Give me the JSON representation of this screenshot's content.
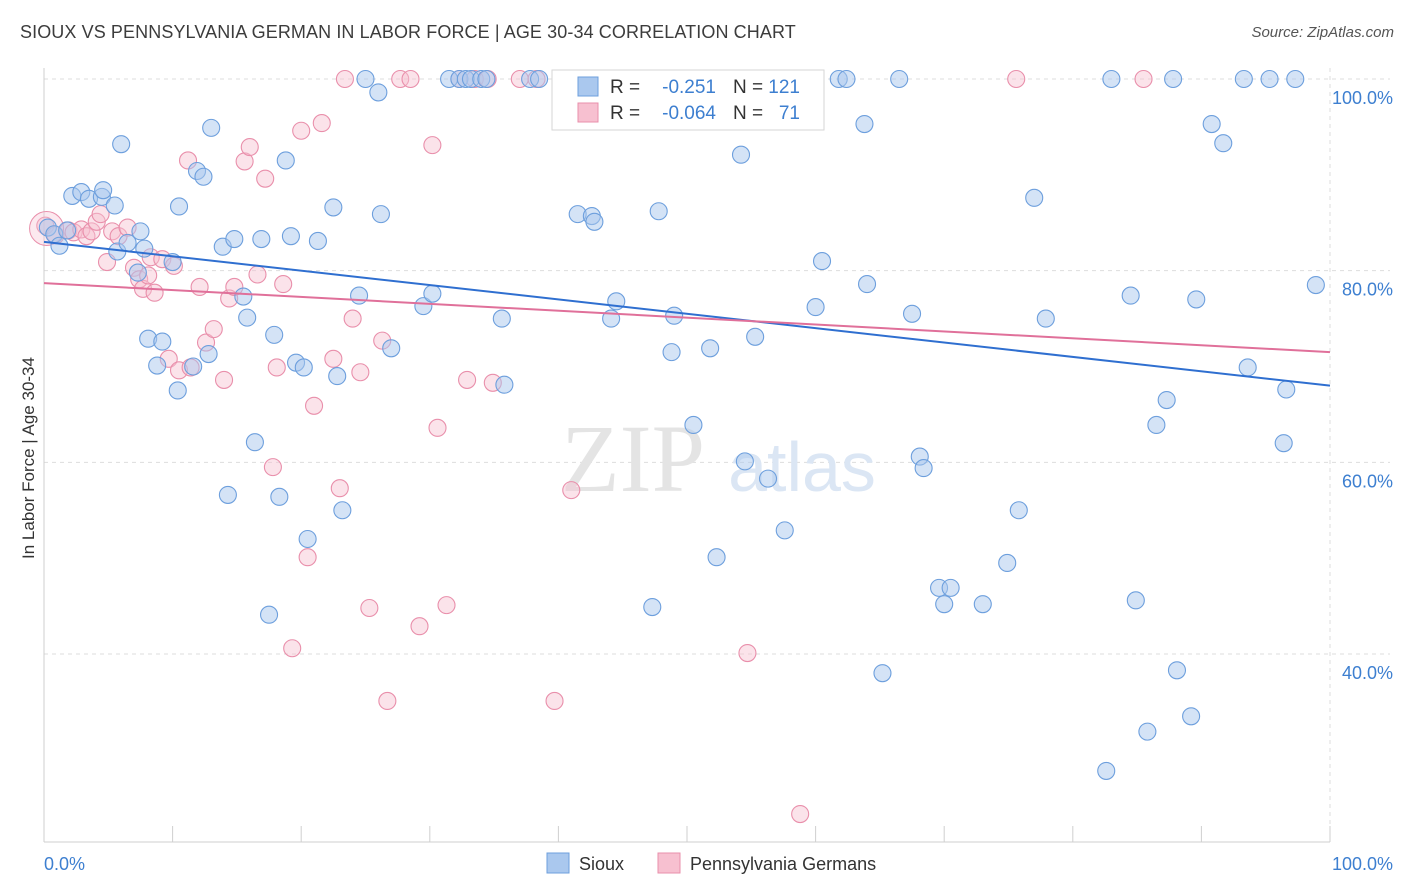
{
  "header": {
    "title": "SIOUX VS PENNSYLVANIA GERMAN IN LABOR FORCE | AGE 30-34 CORRELATION CHART",
    "source": "Source: ZipAtlas.com"
  },
  "watermark": {
    "zip": "ZIP",
    "atlas": "atlas"
  },
  "colors": {
    "sioux_fill": "#aac8ee",
    "sioux_stroke": "#6d9fdd",
    "sioux_line": "#2f6fd0",
    "pa_fill": "#f7c0d0",
    "pa_stroke": "#e98fab",
    "pa_line": "#e0709a",
    "tick_label": "#3d7fd0",
    "grid": "#dddddd"
  },
  "legend": {
    "r_label": "R =",
    "n_label": "N =",
    "rows": [
      {
        "r": "-0.251",
        "n": "121"
      },
      {
        "r": "-0.064",
        "n": "71"
      }
    ]
  },
  "chart_data": {
    "type": "scatter",
    "title": "SIOUX VS PENNSYLVANIA GERMAN IN LABOR FORCE | AGE 30-34 CORRELATION CHART",
    "xlabel": "",
    "ylabel": "In Labor Force | Age 30-34",
    "xlim": [
      0,
      100
    ],
    "ylim": [
      20,
      103
    ],
    "x_tick_labels": [
      "0.0%",
      "100.0%"
    ],
    "y_ticks": [
      40,
      60,
      80,
      100
    ],
    "y_tick_labels": [
      "40.0%",
      "60.0%",
      "80.0%",
      "100.0%"
    ],
    "grid": true,
    "legend_position": "top-center",
    "series": [
      {
        "name": "Sioux",
        "r": -0.251,
        "n": 121,
        "trend": {
          "x": [
            0,
            100
          ],
          "y": [
            83.0,
            68.0
          ]
        },
        "points": [
          [
            0.3,
            84.5
          ],
          [
            0.8,
            83.8
          ],
          [
            1.2,
            82.6
          ],
          [
            1.8,
            84.2
          ],
          [
            2.2,
            87.8
          ],
          [
            2.9,
            88.2
          ],
          [
            3.5,
            87.5
          ],
          [
            4.5,
            87.7
          ],
          [
            4.6,
            88.4
          ],
          [
            5.5,
            86.8
          ],
          [
            5.7,
            82.0
          ],
          [
            6.0,
            93.2
          ],
          [
            6.5,
            82.9
          ],
          [
            7.3,
            79.8
          ],
          [
            7.5,
            84.1
          ],
          [
            7.8,
            82.3
          ],
          [
            8.1,
            72.9
          ],
          [
            8.8,
            70.1
          ],
          [
            9.2,
            72.6
          ],
          [
            10.0,
            80.9
          ],
          [
            10.4,
            67.5
          ],
          [
            10.5,
            86.7
          ],
          [
            11.6,
            70.0
          ],
          [
            11.9,
            90.4
          ],
          [
            12.4,
            89.8
          ],
          [
            12.8,
            71.3
          ],
          [
            13.0,
            94.9
          ],
          [
            13.9,
            82.5
          ],
          [
            14.3,
            56.6
          ],
          [
            14.8,
            83.3
          ],
          [
            15.5,
            77.3
          ],
          [
            15.8,
            75.1
          ],
          [
            16.4,
            62.1
          ],
          [
            16.9,
            83.3
          ],
          [
            17.5,
            44.1
          ],
          [
            17.9,
            73.3
          ],
          [
            18.3,
            56.4
          ],
          [
            18.8,
            91.5
          ],
          [
            19.2,
            83.6
          ],
          [
            19.6,
            70.4
          ],
          [
            20.2,
            69.9
          ],
          [
            20.5,
            52.0
          ],
          [
            21.3,
            83.1
          ],
          [
            22.5,
            86.6
          ],
          [
            22.8,
            69.0
          ],
          [
            23.2,
            55.0
          ],
          [
            24.5,
            77.4
          ],
          [
            25.0,
            100.0
          ],
          [
            26.0,
            98.6
          ],
          [
            26.2,
            85.9
          ],
          [
            27.0,
            71.9
          ],
          [
            29.5,
            76.3
          ],
          [
            30.2,
            77.6
          ],
          [
            31.5,
            100.0
          ],
          [
            32.3,
            100.0
          ],
          [
            32.8,
            100.0
          ],
          [
            33.2,
            100.0
          ],
          [
            34.0,
            100.0
          ],
          [
            34.4,
            100.0
          ],
          [
            35.6,
            75.0
          ],
          [
            35.8,
            68.1
          ],
          [
            37.8,
            100.0
          ],
          [
            38.5,
            100.0
          ],
          [
            41.5,
            85.9
          ],
          [
            42.6,
            85.7
          ],
          [
            42.8,
            85.1
          ],
          [
            44.1,
            75.0
          ],
          [
            44.5,
            76.8
          ],
          [
            47.3,
            44.9
          ],
          [
            47.8,
            86.2
          ],
          [
            48.8,
            71.5
          ],
          [
            49.0,
            75.3
          ],
          [
            50.5,
            63.9
          ],
          [
            51.8,
            71.9
          ],
          [
            52.3,
            50.1
          ],
          [
            54.2,
            92.1
          ],
          [
            54.5,
            60.1
          ],
          [
            55.3,
            73.1
          ],
          [
            56.3,
            58.3
          ],
          [
            57.6,
            52.9
          ],
          [
            59.8,
            100.0
          ],
          [
            60.0,
            76.2
          ],
          [
            60.5,
            81.0
          ],
          [
            61.8,
            100.0
          ],
          [
            63.8,
            95.3
          ],
          [
            64.0,
            78.6
          ],
          [
            65.2,
            38.0
          ],
          [
            66.5,
            100.0
          ],
          [
            67.5,
            75.5
          ],
          [
            68.1,
            60.6
          ],
          [
            68.4,
            59.4
          ],
          [
            69.6,
            46.9
          ],
          [
            70.0,
            45.2
          ],
          [
            70.5,
            46.9
          ],
          [
            73.0,
            45.2
          ],
          [
            74.9,
            49.5
          ],
          [
            75.8,
            55.0
          ],
          [
            77.0,
            87.6
          ],
          [
            77.9,
            75.0
          ],
          [
            82.6,
            27.8
          ],
          [
            83.0,
            100.0
          ],
          [
            84.5,
            77.4
          ],
          [
            84.9,
            45.6
          ],
          [
            85.8,
            31.9
          ],
          [
            86.5,
            63.9
          ],
          [
            87.3,
            66.5
          ],
          [
            87.8,
            100.0
          ],
          [
            88.1,
            38.3
          ],
          [
            89.2,
            33.5
          ],
          [
            89.6,
            77.0
          ],
          [
            90.8,
            95.3
          ],
          [
            91.7,
            93.3
          ],
          [
            93.3,
            100.0
          ],
          [
            93.6,
            69.9
          ],
          [
            95.3,
            100.0
          ],
          [
            96.4,
            62.0
          ],
          [
            96.6,
            67.6
          ],
          [
            97.3,
            100.0
          ],
          [
            98.9,
            78.5
          ],
          [
            59.2,
            100.0
          ],
          [
            62.4,
            100.0
          ]
        ]
      },
      {
        "name": "Pennsylvania Germans",
        "r": -0.064,
        "n": 71,
        "trend": {
          "x": [
            0,
            100
          ],
          "y": [
            78.7,
            71.5
          ]
        },
        "points": [
          [
            0.1,
            84.7
          ],
          [
            0.9,
            83.7
          ],
          [
            1.9,
            84.2
          ],
          [
            2.3,
            84.0
          ],
          [
            2.9,
            84.3
          ],
          [
            3.3,
            83.6
          ],
          [
            3.7,
            84.1
          ],
          [
            4.1,
            85.1
          ],
          [
            4.4,
            85.9
          ],
          [
            4.9,
            80.9
          ],
          [
            5.3,
            84.1
          ],
          [
            5.8,
            83.6
          ],
          [
            6.5,
            84.5
          ],
          [
            7.0,
            80.3
          ],
          [
            7.4,
            79.1
          ],
          [
            7.7,
            78.1
          ],
          [
            8.1,
            79.5
          ],
          [
            8.3,
            81.4
          ],
          [
            8.6,
            77.7
          ],
          [
            9.2,
            81.2
          ],
          [
            9.7,
            70.8
          ],
          [
            10.1,
            80.5
          ],
          [
            10.5,
            69.6
          ],
          [
            11.2,
            91.5
          ],
          [
            11.4,
            69.9
          ],
          [
            12.1,
            78.3
          ],
          [
            12.6,
            72.5
          ],
          [
            13.2,
            73.9
          ],
          [
            14.0,
            68.6
          ],
          [
            14.4,
            77.1
          ],
          [
            14.8,
            78.3
          ],
          [
            15.6,
            91.4
          ],
          [
            16.0,
            92.9
          ],
          [
            16.6,
            79.6
          ],
          [
            17.2,
            89.6
          ],
          [
            17.8,
            59.5
          ],
          [
            18.1,
            69.9
          ],
          [
            18.6,
            78.6
          ],
          [
            19.3,
            40.6
          ],
          [
            20.0,
            94.6
          ],
          [
            20.5,
            50.1
          ],
          [
            21.0,
            65.9
          ],
          [
            21.6,
            95.4
          ],
          [
            22.5,
            70.8
          ],
          [
            23.0,
            57.3
          ],
          [
            23.4,
            100.0
          ],
          [
            24.0,
            75.0
          ],
          [
            24.6,
            69.4
          ],
          [
            25.3,
            44.8
          ],
          [
            26.3,
            72.7
          ],
          [
            26.7,
            35.1
          ],
          [
            27.7,
            100.0
          ],
          [
            28.5,
            100.0
          ],
          [
            29.2,
            42.9
          ],
          [
            30.2,
            93.1
          ],
          [
            30.6,
            63.6
          ],
          [
            31.3,
            45.1
          ],
          [
            32.3,
            100.0
          ],
          [
            32.9,
            68.6
          ],
          [
            33.5,
            100.0
          ],
          [
            34.5,
            100.0
          ],
          [
            34.9,
            68.3
          ],
          [
            37.0,
            100.0
          ],
          [
            38.3,
            100.0
          ],
          [
            39.7,
            35.1
          ],
          [
            41.0,
            57.1
          ],
          [
            54.7,
            40.1
          ],
          [
            58.8,
            23.3
          ],
          [
            75.6,
            100.0
          ],
          [
            85.5,
            100.0
          ],
          [
            49.8,
            100.0
          ]
        ]
      }
    ]
  },
  "bottom_legend": [
    {
      "label": "Sioux"
    },
    {
      "label": "Pennsylvania Germans"
    }
  ]
}
